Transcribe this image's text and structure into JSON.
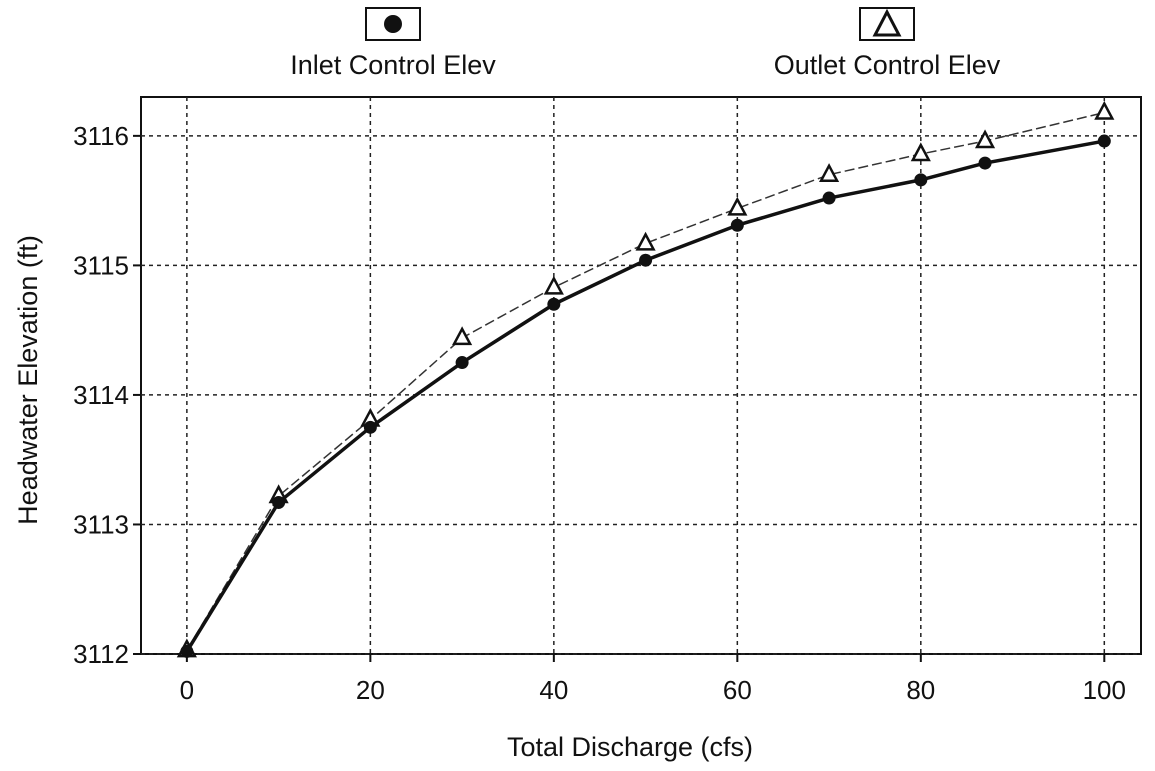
{
  "chart_data": {
    "type": "line",
    "xlabel": "Total Discharge (cfs)",
    "ylabel": "Headwater Elevation (ft)",
    "xlim": [
      -5,
      104
    ],
    "ylim": [
      3112,
      3116.3
    ],
    "x_ticks": [
      0,
      20,
      40,
      60,
      80,
      100
    ],
    "x_tick_labels": [
      "0",
      "20",
      "40",
      "60",
      "80",
      "100"
    ],
    "y_ticks": [
      3112,
      3113,
      3114,
      3115,
      3116
    ],
    "y_tick_labels": [
      "3112",
      "3113",
      "3114",
      "3115",
      "3116"
    ],
    "grid": true,
    "legend_position": "top",
    "series": [
      {
        "name": "Inlet Control Elev",
        "marker": "circle",
        "color": "#111111",
        "x": [
          0,
          10,
          20,
          30,
          40,
          50,
          60,
          70,
          80,
          87,
          100
        ],
        "values": [
          3112.02,
          3113.17,
          3113.75,
          3114.25,
          3114.7,
          3115.04,
          3115.31,
          3115.52,
          3115.66,
          3115.79,
          3115.96
        ]
      },
      {
        "name": "Outlet Control Elev",
        "marker": "triangle",
        "color": "#333333",
        "x": [
          0,
          10,
          20,
          30,
          40,
          50,
          60,
          70,
          80,
          87,
          100
        ],
        "values": [
          3112.03,
          3113.22,
          3113.81,
          3114.44,
          3114.83,
          3115.17,
          3115.44,
          3115.7,
          3115.86,
          3115.96,
          3116.18
        ]
      }
    ]
  }
}
